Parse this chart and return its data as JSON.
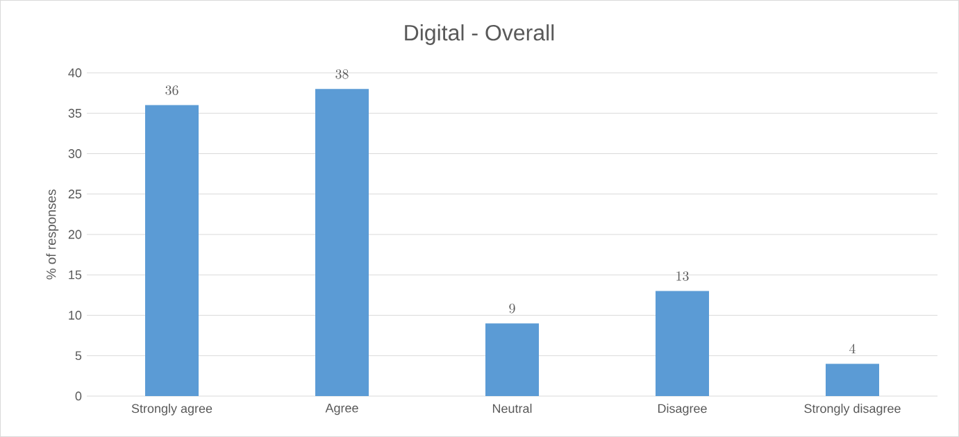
{
  "chart_data": {
    "type": "bar",
    "title": "Digital - Overall",
    "ylabel": "% of responses",
    "categories": [
      "Strongly agree",
      "Agree",
      "Neutral",
      "Disagree",
      "Strongly disagree"
    ],
    "values": [
      36,
      38,
      9,
      13,
      4
    ],
    "color": "#5b9bd5",
    "ylim": [
      0,
      40
    ],
    "yticks": [
      0,
      5,
      10,
      15,
      20,
      25,
      30,
      35,
      40
    ],
    "grid": "y",
    "data_labels": true
  }
}
